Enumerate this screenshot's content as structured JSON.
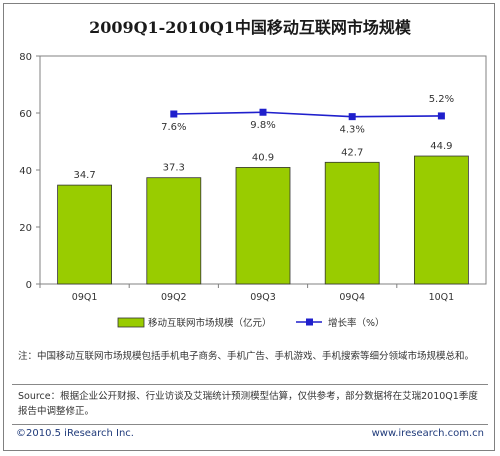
{
  "chart_data": {
    "type": "bar",
    "title": "2009Q1-2010Q1中国移动互联网市场规模",
    "categories": [
      "09Q1",
      "09Q2",
      "09Q3",
      "09Q4",
      "10Q1"
    ],
    "series": [
      {
        "name": "移动互联网市场规模（亿元）",
        "type": "bar",
        "values": [
          34.7,
          37.3,
          40.9,
          42.7,
          44.9
        ],
        "color": "#99cc00"
      },
      {
        "name": "增长率（%）",
        "type": "line",
        "values": [
          null,
          7.6,
          9.8,
          4.3,
          5.2
        ],
        "labels": [
          "",
          "7.6%",
          "9.8%",
          "4.3%",
          "5.2%"
        ],
        "color": "#1f1fcc"
      }
    ],
    "ylim": [
      0,
      80
    ],
    "yticks": [
      0,
      20,
      40,
      60,
      80
    ],
    "legend": "bottom",
    "grid": false
  },
  "notes": {
    "note": "注：中国移动互联网市场规模包括手机电子商务、手机广告、手机游戏、手机搜索等细分领域市场规模总和。",
    "source": "Source：根据企业公开财报、行业访谈及艾瑞统计预测模型估算，仅供参考，部分数据将在艾瑞2010Q1季度报告中调整修正。"
  },
  "footer": {
    "copyright": "©2010.5 iResearch Inc.",
    "website": "www.iresearch.com.cn"
  }
}
